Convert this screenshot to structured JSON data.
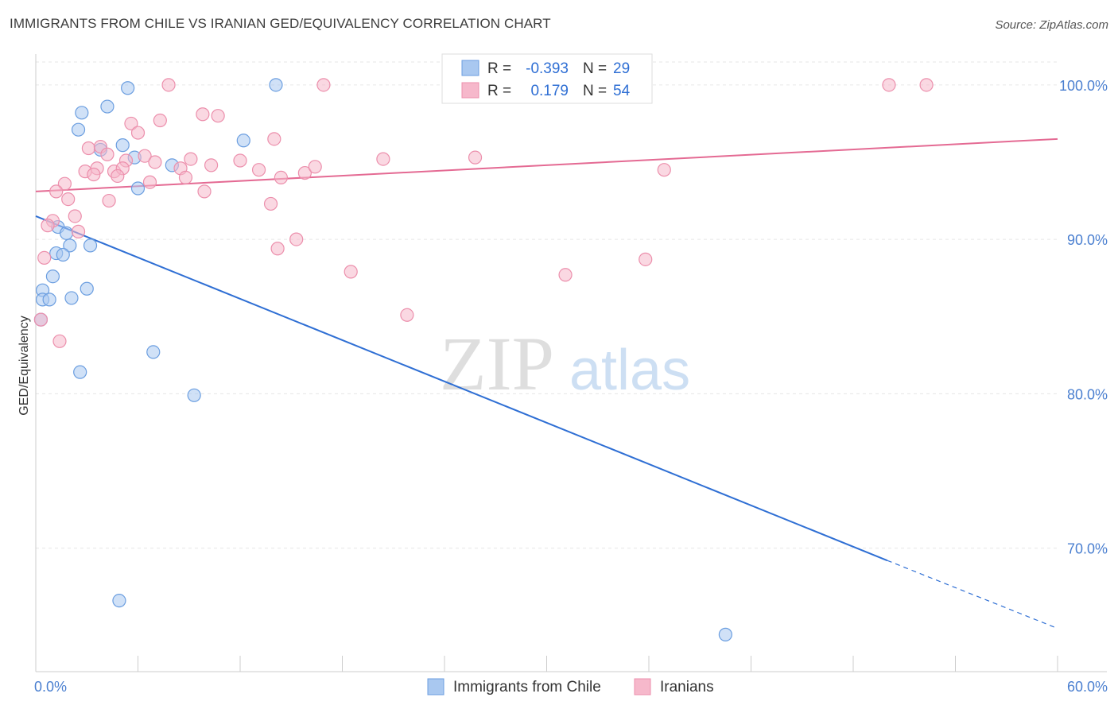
{
  "header": {
    "title": "IMMIGRANTS FROM CHILE VS IRANIAN GED/EQUIVALENCY CORRELATION CHART",
    "source": "Source: ZipAtlas.com"
  },
  "watermark": {
    "zip": "ZIP",
    "atlas": "atlas"
  },
  "colors": {
    "blue_fill": "#a9c8f0",
    "blue_stroke": "#6b9ee0",
    "blue_line": "#2f6fd4",
    "pink_fill": "#f6b8cb",
    "pink_stroke": "#ec8fac",
    "pink_line": "#e46a93",
    "tick_label": "#4a7fd0",
    "grid": "#e6e6e6"
  },
  "legend_top": {
    "rows": [
      {
        "r_label": "R =",
        "r_value": "-0.393",
        "n_label": "N =",
        "n_value": "29",
        "series": "blue"
      },
      {
        "r_label": "R =",
        "r_value": "0.179",
        "n_label": "N =",
        "n_value": "54",
        "series": "pink"
      }
    ]
  },
  "chart_data": {
    "type": "scatter",
    "title": "IMMIGRANTS FROM CHILE VS IRANIAN GED/EQUIVALENCY CORRELATION CHART",
    "xlabel": "",
    "ylabel": "GED/Equivalency",
    "xlim": [
      0,
      60
    ],
    "ylim": [
      62,
      102
    ],
    "x_tick_labels": [
      "0.0%",
      "60.0%"
    ],
    "y_ticks": [
      70,
      80,
      90,
      100
    ],
    "y_tick_labels": [
      "70.0%",
      "80.0%",
      "90.0%",
      "100.0%"
    ],
    "x_minor_ticks": [
      0,
      6,
      12,
      18,
      24,
      30,
      36,
      42,
      48,
      54,
      60
    ],
    "legend": [
      "Immigrants from Chile",
      "Iranians"
    ],
    "series": [
      {
        "name": "Immigrants from Chile",
        "color": "blue",
        "r": -0.393,
        "n": 29,
        "trend": {
          "x0": 0,
          "y0": 91.5,
          "x1": 50,
          "y1": 69.2,
          "dash_to_x": 60,
          "dash_to_y": 64.8
        },
        "points": [
          [
            5.4,
            99.8
          ],
          [
            14.1,
            100.0
          ],
          [
            2.5,
            97.1
          ],
          [
            4.2,
            98.6
          ],
          [
            2.7,
            98.2
          ],
          [
            5.1,
            96.1
          ],
          [
            3.8,
            95.8
          ],
          [
            12.2,
            96.4
          ],
          [
            5.8,
            95.3
          ],
          [
            8.0,
            94.8
          ],
          [
            6.0,
            93.3
          ],
          [
            1.3,
            90.8
          ],
          [
            1.8,
            90.4
          ],
          [
            2.0,
            89.6
          ],
          [
            3.2,
            89.6
          ],
          [
            1.2,
            89.1
          ],
          [
            1.6,
            89.0
          ],
          [
            1.0,
            87.6
          ],
          [
            0.4,
            86.7
          ],
          [
            3.0,
            86.8
          ],
          [
            0.4,
            86.1
          ],
          [
            0.8,
            86.1
          ],
          [
            2.1,
            86.2
          ],
          [
            0.3,
            84.8
          ],
          [
            6.9,
            82.7
          ],
          [
            2.6,
            81.4
          ],
          [
            9.3,
            79.9
          ],
          [
            4.9,
            66.6
          ],
          [
            40.5,
            64.4
          ]
        ]
      },
      {
        "name": "Iranians",
        "color": "pink",
        "r": 0.179,
        "n": 54,
        "trend": {
          "x0": 0,
          "y0": 93.1,
          "x1": 60,
          "y1": 96.5
        },
        "points": [
          [
            7.8,
            100.0
          ],
          [
            16.9,
            100.0
          ],
          [
            50.1,
            100.0
          ],
          [
            52.3,
            100.0
          ],
          [
            7.3,
            97.7
          ],
          [
            9.8,
            98.1
          ],
          [
            10.7,
            98.0
          ],
          [
            5.6,
            97.5
          ],
          [
            6.0,
            96.9
          ],
          [
            14.0,
            96.5
          ],
          [
            3.1,
            95.9
          ],
          [
            3.8,
            96.0
          ],
          [
            5.3,
            95.1
          ],
          [
            6.4,
            95.4
          ],
          [
            4.2,
            95.5
          ],
          [
            7.0,
            95.0
          ],
          [
            9.1,
            95.2
          ],
          [
            10.3,
            94.8
          ],
          [
            12.0,
            95.1
          ],
          [
            20.4,
            95.2
          ],
          [
            25.8,
            95.3
          ],
          [
            2.9,
            94.4
          ],
          [
            3.6,
            94.6
          ],
          [
            4.6,
            94.4
          ],
          [
            5.1,
            94.6
          ],
          [
            8.5,
            94.6
          ],
          [
            13.1,
            94.5
          ],
          [
            15.8,
            94.3
          ],
          [
            16.4,
            94.7
          ],
          [
            36.9,
            94.5
          ],
          [
            3.4,
            94.2
          ],
          [
            4.8,
            94.1
          ],
          [
            8.8,
            94.0
          ],
          [
            14.4,
            94.0
          ],
          [
            1.7,
            93.6
          ],
          [
            6.7,
            93.7
          ],
          [
            1.2,
            93.1
          ],
          [
            9.9,
            93.1
          ],
          [
            1.9,
            92.6
          ],
          [
            4.3,
            92.5
          ],
          [
            13.8,
            92.3
          ],
          [
            2.3,
            91.5
          ],
          [
            1.0,
            91.2
          ],
          [
            0.7,
            90.9
          ],
          [
            2.5,
            90.5
          ],
          [
            15.3,
            90.0
          ],
          [
            14.2,
            89.4
          ],
          [
            0.5,
            88.8
          ],
          [
            35.8,
            88.7
          ],
          [
            18.5,
            87.9
          ],
          [
            31.1,
            87.7
          ],
          [
            21.8,
            85.1
          ],
          [
            1.4,
            83.4
          ],
          [
            0.3,
            84.8
          ]
        ]
      }
    ]
  }
}
